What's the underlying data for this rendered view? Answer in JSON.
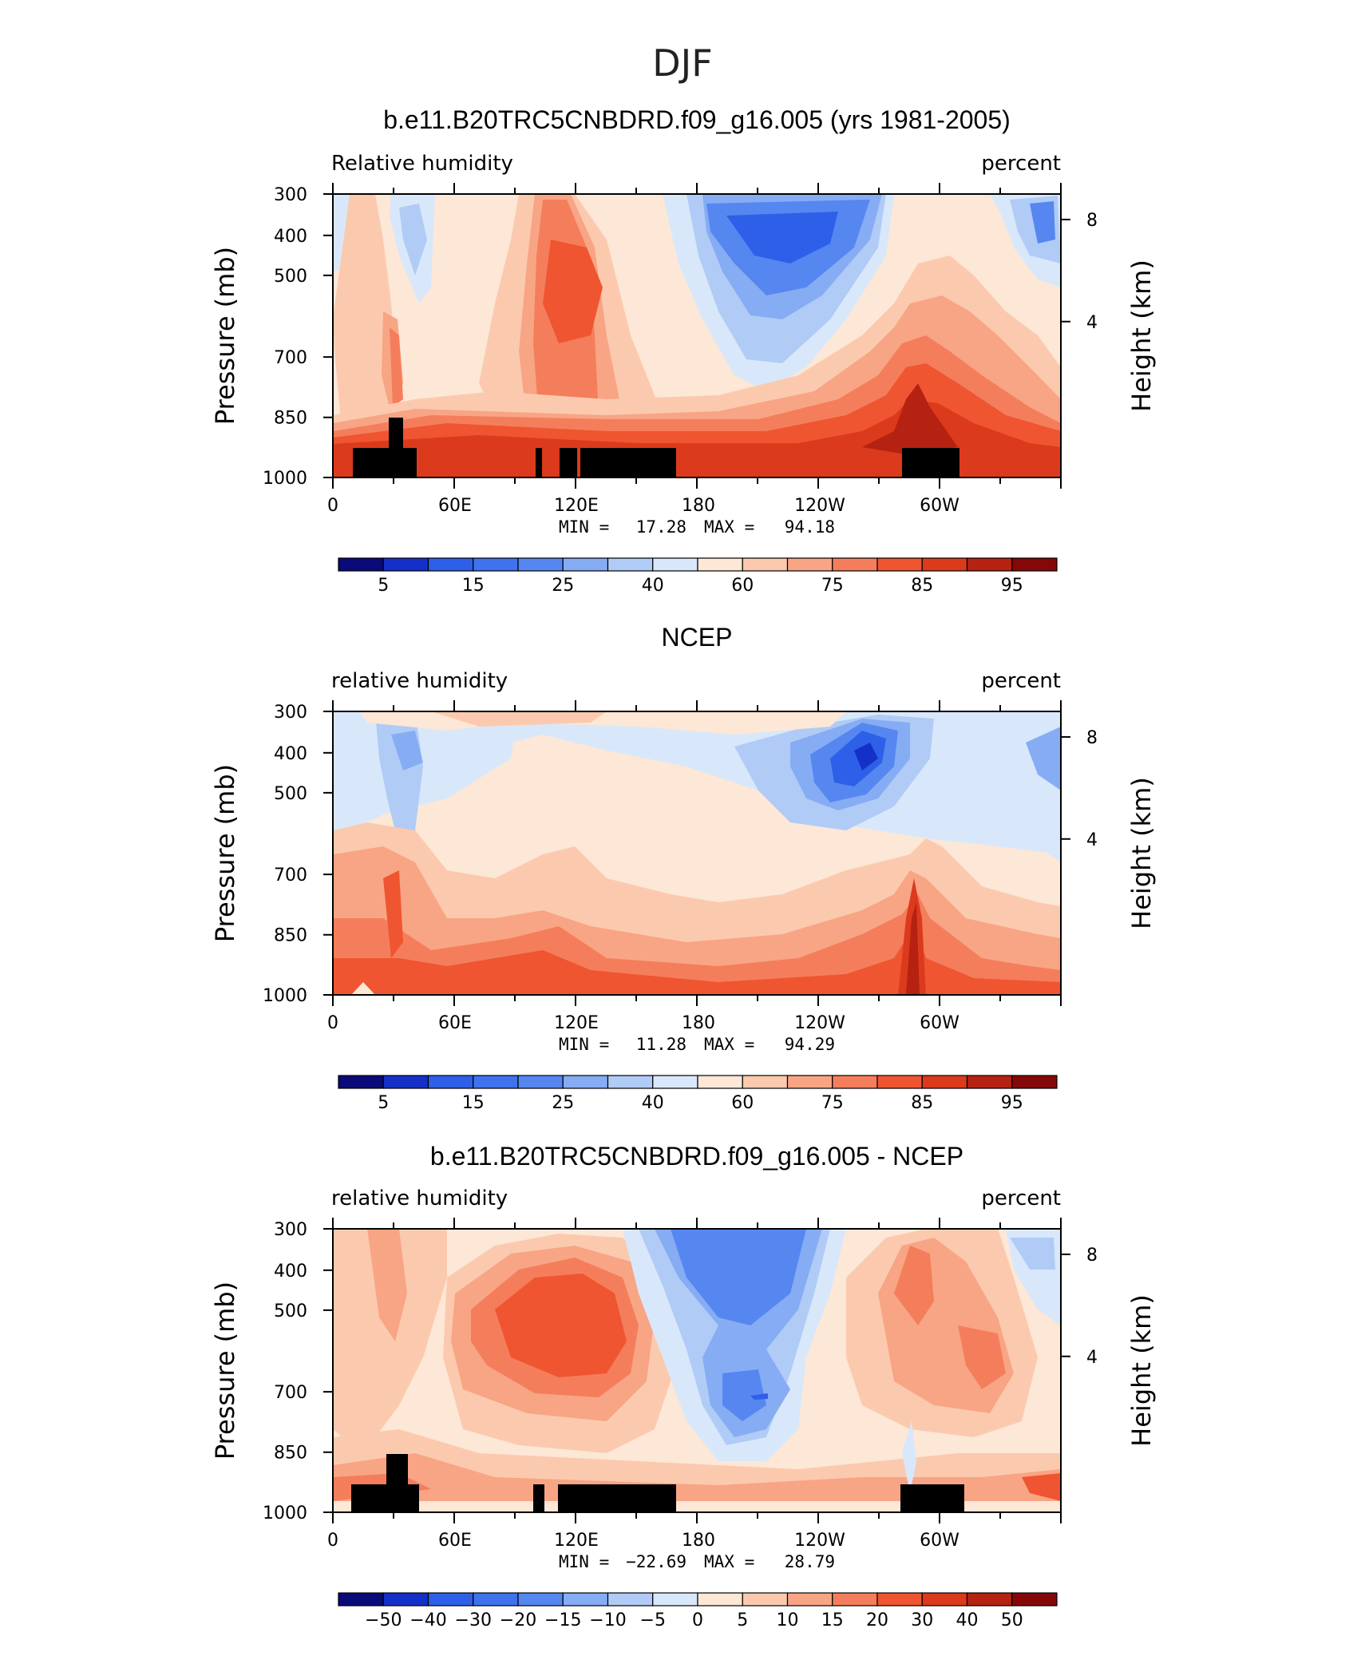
{
  "figure_title": "DJF",
  "chart_data": [
    {
      "type": "heatmap",
      "title": "b.e11.B20TRC5CNBDRD.f09_g16.005 (yrs 1981-2005)",
      "variable_label": "Relative humidity",
      "units_label": "percent",
      "ylabel": "Pressure (mb)",
      "y2label": "Height (km)",
      "x_ticks": [
        "0",
        "60E",
        "120E",
        "180",
        "120W",
        "60W"
      ],
      "y_ticks": [
        "300",
        "400",
        "500",
        "700",
        "850",
        "1000"
      ],
      "y2_ticks": [
        "8",
        "4"
      ],
      "min_label": "MIN =",
      "min_value": "17.28",
      "max_label": "MAX =",
      "max_value": "94.18",
      "colorbar_labels": [
        "5",
        "15",
        "25",
        "40",
        "60",
        "75",
        "85",
        "95"
      ],
      "xlim": [
        0,
        360
      ],
      "ylim": [
        1000,
        300
      ],
      "terrain": true
    },
    {
      "type": "heatmap",
      "title": "NCEP",
      "variable_label": "relative humidity",
      "units_label": "percent",
      "ylabel": "Pressure (mb)",
      "y2label": "Height (km)",
      "x_ticks": [
        "0",
        "60E",
        "120E",
        "180",
        "120W",
        "60W"
      ],
      "y_ticks": [
        "300",
        "400",
        "500",
        "700",
        "850",
        "1000"
      ],
      "y2_ticks": [
        "8",
        "4"
      ],
      "min_label": "MIN =",
      "min_value": "11.28",
      "max_label": "MAX =",
      "max_value": "94.29",
      "colorbar_labels": [
        "5",
        "15",
        "25",
        "40",
        "60",
        "75",
        "85",
        "95"
      ],
      "xlim": [
        0,
        360
      ],
      "ylim": [
        1000,
        300
      ],
      "terrain": false
    },
    {
      "type": "heatmap",
      "title": "b.e11.B20TRC5CNBDRD.f09_g16.005 - NCEP",
      "variable_label": "relative humidity",
      "units_label": "percent",
      "ylabel": "Pressure (mb)",
      "y2label": "Height (km)",
      "x_ticks": [
        "0",
        "60E",
        "120E",
        "180",
        "120W",
        "60W"
      ],
      "y_ticks": [
        "300",
        "400",
        "500",
        "700",
        "850",
        "1000"
      ],
      "y2_ticks": [
        "8",
        "4"
      ],
      "min_label": "MIN =",
      "min_value": "−22.69",
      "max_label": "MAX =",
      "max_value": "28.79",
      "colorbar_labels": [
        "−50",
        "−40",
        "−30",
        "−20",
        "−15",
        "−10",
        "−5",
        "0",
        "5",
        "10",
        "15",
        "20",
        "30",
        "40",
        "50"
      ],
      "xlim": [
        0,
        360
      ],
      "ylim": [
        1000,
        300
      ],
      "terrain": true
    }
  ],
  "colors": [
    "#0a0a78",
    "#1530c8",
    "#2e5fe8",
    "#5687f0",
    "#86acf4",
    "#b0cbf6",
    "#d8e8fa",
    "#fde7d6",
    "#fbcaae",
    "#f8a585",
    "#f47e5b",
    "#ef5530",
    "#dc3a1c",
    "#b52212",
    "#840808"
  ]
}
